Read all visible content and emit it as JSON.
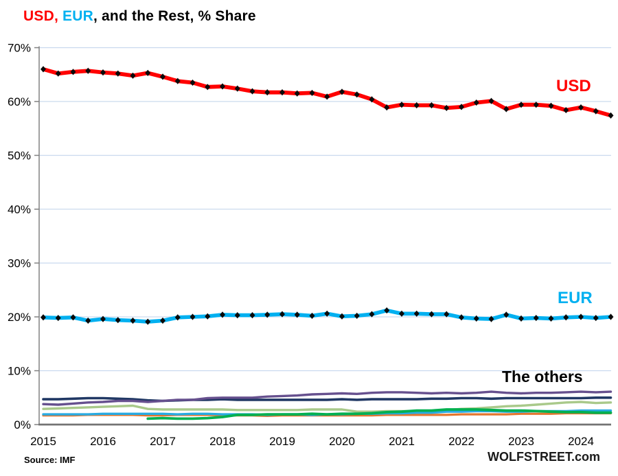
{
  "title": {
    "part_usd": "USD, ",
    "part_eur": "EUR",
    "part_rest": ", and the Rest, % Share"
  },
  "footer": {
    "source": "Source: IMF",
    "brand": "WOLFSTREET.com"
  },
  "colors": {
    "usd_red": "#ff0000",
    "eur_cyan": "#00b0f0",
    "grid": "#c9d9ee",
    "axis": "#808080",
    "axis_bottom": "#737373",
    "marker": "#0a0a0a"
  },
  "chart_data": {
    "type": "line",
    "title": "USD, EUR, and the Rest, % Share",
    "x_frequency": "quarterly",
    "x_start": "2015Q1",
    "x_end": "2024Q3",
    "xticks": [
      "2015",
      "2016",
      "2017",
      "2018",
      "2019",
      "2020",
      "2021",
      "2022",
      "2023",
      "2024"
    ],
    "yticks": [
      "0%",
      "10%",
      "20%",
      "30%",
      "40%",
      "50%",
      "60%",
      "70%"
    ],
    "ylim": [
      0,
      70
    ],
    "grid": true,
    "legend": "inline-annotations",
    "annotations": [
      {
        "text": "USD",
        "color": "#ff0000"
      },
      {
        "text": "EUR",
        "color": "#00b0f0"
      },
      {
        "text": "The others",
        "color": "#000000"
      }
    ],
    "series": [
      {
        "name": "other-light-green",
        "color": "#a9c98a",
        "width": 3.4,
        "markers": false,
        "values": [
          2.9,
          3.0,
          3.1,
          3.2,
          3.3,
          3.4,
          3.5,
          2.9,
          2.8,
          2.8,
          2.8,
          2.8,
          2.8,
          2.7,
          2.7,
          2.7,
          2.7,
          2.7,
          2.8,
          2.8,
          2.8,
          2.4,
          2.4,
          2.5,
          2.5,
          2.5,
          2.6,
          2.7,
          2.9,
          3.0,
          3.2,
          3.4,
          3.5,
          3.7,
          3.9,
          4.1,
          4.2,
          4.0,
          4.1
        ]
      },
      {
        "name": "other-orange",
        "color": "#e3762e",
        "width": 3.2,
        "markers": false,
        "values": [
          1.7,
          1.7,
          1.7,
          1.8,
          1.8,
          1.8,
          1.8,
          1.7,
          1.7,
          1.8,
          1.8,
          1.8,
          1.7,
          1.7,
          1.7,
          1.6,
          1.7,
          1.7,
          1.7,
          1.7,
          1.7,
          1.7,
          1.7,
          1.8,
          1.8,
          1.8,
          1.8,
          1.8,
          1.9,
          1.9,
          1.9,
          1.9,
          2.0,
          2.0,
          2.0,
          2.1,
          2.1,
          2.1,
          2.1
        ]
      },
      {
        "name": "other-light-blue",
        "color": "#29abe2",
        "width": 3.4,
        "markers": false,
        "values": [
          1.9,
          1.9,
          1.9,
          1.9,
          2.0,
          2.0,
          2.0,
          2.0,
          2.0,
          1.9,
          2.0,
          2.0,
          1.9,
          1.9,
          1.9,
          1.8,
          1.9,
          1.9,
          1.8,
          1.9,
          1.9,
          2.0,
          2.0,
          2.1,
          2.1,
          2.2,
          2.2,
          2.4,
          2.4,
          2.5,
          2.5,
          2.4,
          2.4,
          2.5,
          2.5,
          2.5,
          2.6,
          2.6,
          2.6
        ]
      },
      {
        "name": "other-green",
        "color": "#00b050",
        "width": 3.8,
        "markers": false,
        "values": [
          null,
          null,
          null,
          null,
          null,
          null,
          null,
          1.1,
          1.2,
          1.1,
          1.1,
          1.2,
          1.4,
          1.8,
          1.8,
          1.9,
          1.9,
          1.9,
          2.0,
          1.9,
          2.0,
          2.0,
          2.1,
          2.3,
          2.4,
          2.6,
          2.6,
          2.8,
          2.8,
          2.8,
          2.7,
          2.6,
          2.6,
          2.5,
          2.4,
          2.3,
          2.3,
          2.2,
          2.2
        ]
      },
      {
        "name": "other-navy",
        "color": "#203864",
        "width": 3.6,
        "markers": false,
        "values": [
          4.7,
          4.7,
          4.8,
          4.9,
          4.9,
          4.8,
          4.7,
          4.5,
          4.4,
          4.5,
          4.6,
          4.6,
          4.7,
          4.6,
          4.6,
          4.6,
          4.6,
          4.6,
          4.6,
          4.6,
          4.7,
          4.6,
          4.7,
          4.7,
          4.7,
          4.7,
          4.8,
          4.8,
          4.9,
          4.9,
          4.8,
          4.9,
          4.9,
          4.9,
          4.9,
          4.9,
          4.9,
          5.0,
          5.0
        ]
      },
      {
        "name": "other-purple",
        "color": "#66508e",
        "width": 3.4,
        "markers": false,
        "values": [
          3.8,
          3.7,
          3.9,
          4.1,
          4.2,
          4.4,
          4.4,
          4.2,
          4.4,
          4.6,
          4.6,
          4.9,
          5.0,
          5.0,
          5.0,
          5.2,
          5.3,
          5.4,
          5.6,
          5.7,
          5.8,
          5.7,
          5.9,
          6.0,
          6.0,
          5.9,
          5.8,
          5.9,
          5.8,
          5.9,
          6.1,
          5.9,
          5.8,
          5.9,
          5.9,
          6.0,
          6.1,
          6.0,
          6.1
        ]
      },
      {
        "name": "EUR",
        "color": "#00b0f0",
        "width": 5.6,
        "markers": true,
        "values": [
          19.9,
          19.8,
          19.9,
          19.3,
          19.6,
          19.4,
          19.3,
          19.1,
          19.3,
          19.9,
          20.0,
          20.1,
          20.4,
          20.3,
          20.3,
          20.4,
          20.5,
          20.4,
          20.2,
          20.6,
          20.1,
          20.2,
          20.5,
          21.2,
          20.6,
          20.6,
          20.5,
          20.5,
          19.9,
          19.7,
          19.6,
          20.4,
          19.7,
          19.8,
          19.7,
          19.9,
          20.0,
          19.8,
          20.0
        ]
      },
      {
        "name": "USD",
        "color": "#ff0000",
        "width": 5.8,
        "markers": true,
        "values": [
          66.0,
          65.2,
          65.5,
          65.7,
          65.4,
          65.2,
          64.8,
          65.3,
          64.6,
          63.8,
          63.5,
          62.7,
          62.8,
          62.4,
          61.9,
          61.7,
          61.7,
          61.5,
          61.6,
          60.9,
          61.8,
          61.3,
          60.4,
          58.9,
          59.4,
          59.3,
          59.3,
          58.8,
          59.0,
          59.8,
          60.1,
          58.6,
          59.4,
          59.4,
          59.2,
          58.4,
          58.9,
          58.2,
          57.4
        ]
      }
    ]
  }
}
